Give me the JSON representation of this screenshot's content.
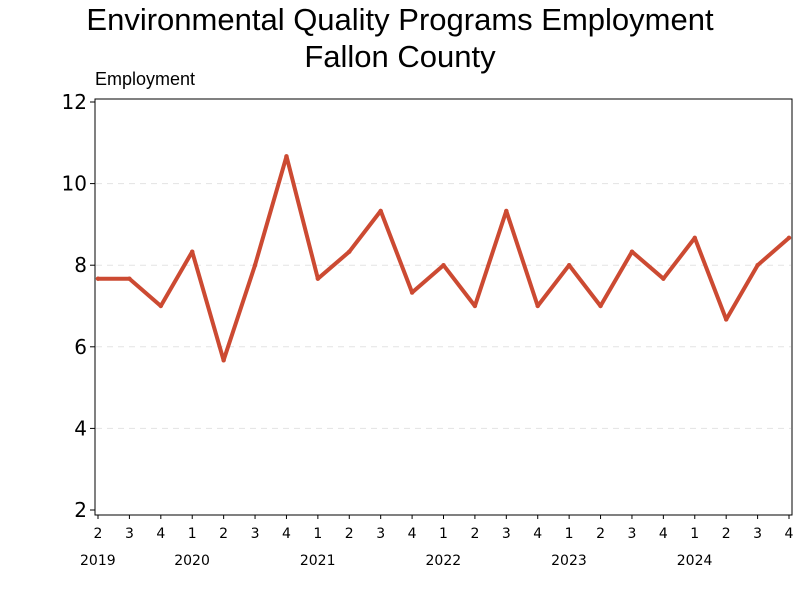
{
  "chart_data": {
    "type": "line",
    "title_lines": [
      "Environmental Quality Programs Employment",
      "Fallon County"
    ],
    "ylabel": "Employment",
    "xlabel": "",
    "ylim": [
      2,
      12
    ],
    "yticks": [
      2,
      4,
      6,
      8,
      10,
      12
    ],
    "grid": "horizontal dashed",
    "quarters": [
      "2",
      "3",
      "4",
      "1",
      "2",
      "3",
      "4",
      "1",
      "2",
      "3",
      "4",
      "1",
      "2",
      "3",
      "4",
      "1",
      "2",
      "3",
      "4",
      "1",
      "2",
      "3",
      "4"
    ],
    "years": [
      {
        "label": "2019",
        "start": 0
      },
      {
        "label": "2020",
        "start": 3
      },
      {
        "label": "2021",
        "start": 7
      },
      {
        "label": "2022",
        "start": 11
      },
      {
        "label": "2023",
        "start": 15
      },
      {
        "label": "2024",
        "start": 19
      }
    ],
    "series": [
      {
        "values": [
          7.67,
          7.67,
          7.0,
          8.33,
          5.67,
          8.0,
          10.67,
          7.67,
          8.33,
          9.33,
          7.33,
          8.0,
          7.0,
          9.33,
          7.0,
          8.0,
          7.0,
          8.33,
          7.67,
          8.67,
          6.67,
          8.0,
          8.67
        ],
        "color": "#cc4a32"
      }
    ]
  }
}
